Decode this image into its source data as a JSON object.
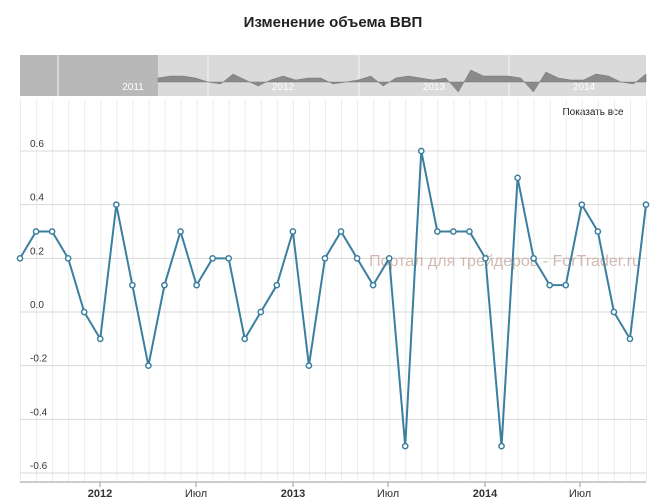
{
  "chart_data": {
    "type": "line",
    "title": "Изменение объема ВВП",
    "ylim": [
      -0.6,
      0.6
    ],
    "y_ticks": [
      "0.6",
      "0.4",
      "0.2",
      "0.0",
      "-0.2",
      "-0.4",
      "-0.6"
    ],
    "x_ticks": [
      {
        "label": "2012",
        "bold": true
      },
      {
        "label": "Июл",
        "bold": false
      },
      {
        "label": "2013",
        "bold": true
      },
      {
        "label": "Июл",
        "bold": false
      },
      {
        "label": "2014",
        "bold": true
      },
      {
        "label": "Июл",
        "bold": false
      }
    ],
    "series": [
      {
        "color": "#3b7f9f",
        "values": [
          0.2,
          0.3,
          0.3,
          0.2,
          0.0,
          -0.1,
          0.4,
          0.1,
          -0.2,
          0.1,
          0.3,
          0.1,
          0.2,
          0.2,
          -0.1,
          0.0,
          0.1,
          0.3,
          -0.2,
          0.2,
          0.3,
          0.2,
          0.1,
          0.2,
          -0.5,
          0.6,
          0.3,
          0.3,
          0.3,
          0.2,
          -0.5,
          0.5,
          0.2,
          0.1,
          0.1,
          0.4,
          0.3,
          0.0,
          -0.1,
          0.4
        ]
      }
    ],
    "grid": true
  },
  "navigator": {
    "year_labels": [
      "2011",
      "2012",
      "2013",
      "2014"
    ]
  },
  "controls": {
    "show_all_label": "Показать все"
  },
  "watermark": "Портал для трейдеров - ForTrader.ru"
}
